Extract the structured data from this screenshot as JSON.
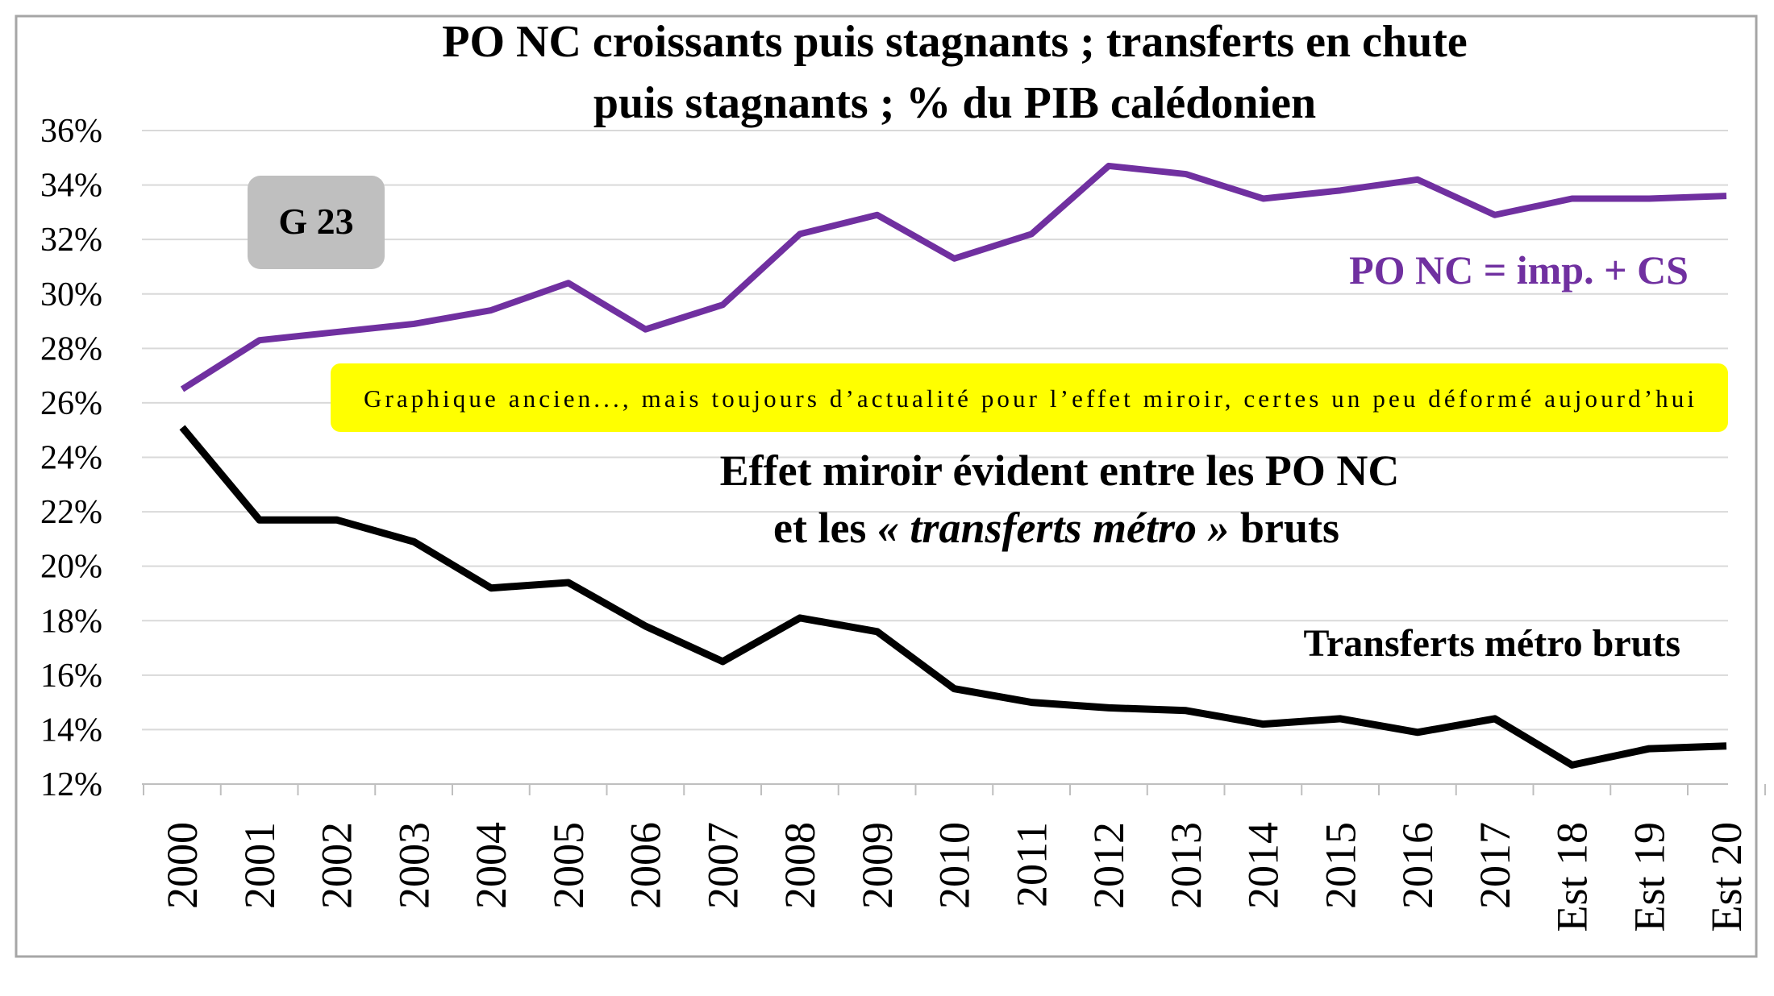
{
  "chart_data": {
    "type": "line",
    "title": [
      "PO NC croissants puis stagnants ; transferts en chute",
      "puis stagnants ; % du PIB calédonien"
    ],
    "badge": "G 23",
    "note": "Graphique ancien..., mais toujours d’actualité pour l’effet miroir, certes un peu déformé aujourd’hui",
    "annotation": {
      "line1": "Effet miroir évident entre les PO NC",
      "line2_prefix": "et les ",
      "line2_italic": "« transferts métro »",
      "line2_suffix": " bruts"
    },
    "categories": [
      "2000",
      "2001",
      "2002",
      "2003",
      "2004",
      "2005",
      "2006",
      "2007",
      "2008",
      "2009",
      "2010",
      "2011",
      "2012",
      "2013",
      "2014",
      "2015",
      "2016",
      "2017",
      "Est 18",
      "Est 19",
      "Est 20"
    ],
    "series": [
      {
        "name": "PO NC = imp. + CS",
        "color": "#7030a0",
        "values": [
          26.5,
          28.3,
          28.6,
          28.9,
          29.4,
          30.4,
          28.7,
          29.6,
          32.2,
          32.9,
          31.3,
          32.2,
          34.7,
          34.4,
          33.5,
          33.8,
          34.2,
          32.9,
          33.5,
          33.5,
          33.6
        ]
      },
      {
        "name": "Transferts métro bruts",
        "color": "#000000",
        "values": [
          25.1,
          21.7,
          21.7,
          20.9,
          19.2,
          19.4,
          17.8,
          16.5,
          18.1,
          17.6,
          15.5,
          15.0,
          14.8,
          14.7,
          14.2,
          14.4,
          13.9,
          14.4,
          12.7,
          13.3,
          13.4
        ]
      }
    ],
    "yticks": [
      "12%",
      "14%",
      "16%",
      "18%",
      "20%",
      "22%",
      "24%",
      "26%",
      "28%",
      "30%",
      "32%",
      "34%",
      "36%"
    ],
    "ylim": [
      12,
      36
    ],
    "xlabel": "",
    "ylabel": "",
    "grid": true,
    "colors": {
      "note_bg": "#ffff00",
      "badge_bg": "#bfbfbf",
      "grid": "#d9d9d9"
    }
  }
}
